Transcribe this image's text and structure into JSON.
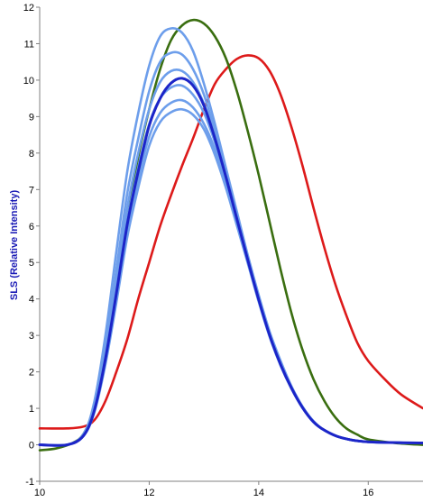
{
  "chart_data": {
    "type": "line",
    "title": "",
    "xlabel": "",
    "ylabel": "SLS (Relative Intensity)",
    "xlim": [
      10,
      17
    ],
    "ylim": [
      -1,
      12
    ],
    "xticks": [
      10,
      12,
      14,
      16
    ],
    "yticks": [
      -1,
      0,
      1,
      2,
      3,
      4,
      5,
      6,
      7,
      8,
      9,
      10,
      11,
      12
    ],
    "grid": false,
    "legend": "none",
    "series": [
      {
        "color": "#dd1a1a",
        "points": [
          [
            10,
            0.45
          ],
          [
            10.5,
            0.45
          ],
          [
            10.8,
            0.5
          ],
          [
            11.0,
            0.68
          ],
          [
            11.2,
            1.2
          ],
          [
            11.4,
            2.0
          ],
          [
            11.6,
            2.9
          ],
          [
            11.8,
            4.0
          ],
          [
            12.0,
            5.0
          ],
          [
            12.2,
            6.0
          ],
          [
            12.4,
            6.85
          ],
          [
            12.6,
            7.65
          ],
          [
            12.8,
            8.4
          ],
          [
            13.0,
            9.2
          ],
          [
            13.2,
            9.9
          ],
          [
            13.4,
            10.3
          ],
          [
            13.6,
            10.58
          ],
          [
            13.8,
            10.68
          ],
          [
            14.0,
            10.6
          ],
          [
            14.2,
            10.25
          ],
          [
            14.4,
            9.6
          ],
          [
            14.6,
            8.7
          ],
          [
            14.8,
            7.65
          ],
          [
            15.0,
            6.5
          ],
          [
            15.2,
            5.4
          ],
          [
            15.4,
            4.4
          ],
          [
            15.6,
            3.55
          ],
          [
            15.8,
            2.8
          ],
          [
            16.0,
            2.3
          ],
          [
            16.3,
            1.8
          ],
          [
            16.6,
            1.38
          ],
          [
            17.0,
            1.0
          ]
        ]
      },
      {
        "color": "#3a6e10",
        "points": [
          [
            10,
            -0.15
          ],
          [
            10.3,
            -0.1
          ],
          [
            10.6,
            0.05
          ],
          [
            10.8,
            0.3
          ],
          [
            11.0,
            1.0
          ],
          [
            11.2,
            2.4
          ],
          [
            11.4,
            4.2
          ],
          [
            11.6,
            6.2
          ],
          [
            11.8,
            7.9
          ],
          [
            12.0,
            9.2
          ],
          [
            12.2,
            10.3
          ],
          [
            12.4,
            11.1
          ],
          [
            12.6,
            11.5
          ],
          [
            12.8,
            11.65
          ],
          [
            13.0,
            11.55
          ],
          [
            13.2,
            11.2
          ],
          [
            13.4,
            10.6
          ],
          [
            13.6,
            9.7
          ],
          [
            13.8,
            8.6
          ],
          [
            14.0,
            7.4
          ],
          [
            14.2,
            6.1
          ],
          [
            14.4,
            4.8
          ],
          [
            14.6,
            3.6
          ],
          [
            14.8,
            2.6
          ],
          [
            15.0,
            1.8
          ],
          [
            15.2,
            1.2
          ],
          [
            15.4,
            0.75
          ],
          [
            15.6,
            0.45
          ],
          [
            15.8,
            0.28
          ],
          [
            16.0,
            0.15
          ],
          [
            16.5,
            0.05
          ],
          [
            17.0,
            0.0
          ]
        ]
      },
      {
        "color": "#6d9eeb",
        "points": [
          [
            10,
            0.0
          ],
          [
            10.5,
            0.0
          ],
          [
            10.8,
            0.3
          ],
          [
            11.0,
            1.2
          ],
          [
            11.2,
            3.0
          ],
          [
            11.4,
            5.3
          ],
          [
            11.6,
            7.5
          ],
          [
            11.8,
            9.1
          ],
          [
            12.0,
            10.4
          ],
          [
            12.2,
            11.2
          ],
          [
            12.4,
            11.42
          ],
          [
            12.6,
            11.3
          ],
          [
            12.8,
            10.8
          ],
          [
            13.0,
            9.9
          ],
          [
            13.2,
            8.8
          ],
          [
            13.4,
            7.6
          ],
          [
            13.6,
            6.4
          ],
          [
            13.8,
            5.2
          ],
          [
            14.0,
            4.1
          ],
          [
            14.2,
            3.1
          ],
          [
            14.4,
            2.3
          ],
          [
            14.6,
            1.6
          ],
          [
            14.8,
            1.05
          ],
          [
            15.0,
            0.65
          ],
          [
            15.2,
            0.4
          ],
          [
            15.5,
            0.2
          ],
          [
            16.0,
            0.08
          ],
          [
            17.0,
            0.05
          ]
        ]
      },
      {
        "color": "#6d9eeb",
        "points": [
          [
            10,
            0.0
          ],
          [
            10.5,
            0.0
          ],
          [
            10.8,
            0.28
          ],
          [
            11.0,
            1.1
          ],
          [
            11.2,
            2.7
          ],
          [
            11.4,
            4.8
          ],
          [
            11.6,
            6.9
          ],
          [
            11.8,
            8.4
          ],
          [
            12.0,
            9.7
          ],
          [
            12.2,
            10.5
          ],
          [
            12.4,
            10.75
          ],
          [
            12.6,
            10.7
          ],
          [
            12.8,
            10.3
          ],
          [
            13.0,
            9.6
          ],
          [
            13.2,
            8.6
          ],
          [
            13.4,
            7.5
          ],
          [
            13.6,
            6.3
          ],
          [
            13.8,
            5.15
          ],
          [
            14.0,
            4.05
          ],
          [
            14.2,
            3.05
          ],
          [
            14.4,
            2.25
          ],
          [
            14.6,
            1.58
          ],
          [
            14.8,
            1.04
          ],
          [
            15.0,
            0.64
          ],
          [
            15.2,
            0.4
          ],
          [
            15.5,
            0.2
          ],
          [
            16.0,
            0.08
          ],
          [
            17.0,
            0.05
          ]
        ]
      },
      {
        "color": "#6d9eeb",
        "points": [
          [
            10,
            0.0
          ],
          [
            10.5,
            0.0
          ],
          [
            10.8,
            0.27
          ],
          [
            11.0,
            1.05
          ],
          [
            11.2,
            2.55
          ],
          [
            11.4,
            4.5
          ],
          [
            11.6,
            6.5
          ],
          [
            11.8,
            8.0
          ],
          [
            12.0,
            9.2
          ],
          [
            12.2,
            9.95
          ],
          [
            12.4,
            10.25
          ],
          [
            12.6,
            10.25
          ],
          [
            12.8,
            9.95
          ],
          [
            13.0,
            9.35
          ],
          [
            13.2,
            8.45
          ],
          [
            13.4,
            7.4
          ],
          [
            13.6,
            6.25
          ],
          [
            13.8,
            5.1
          ],
          [
            14.0,
            4.0
          ],
          [
            14.2,
            3.02
          ],
          [
            14.4,
            2.22
          ],
          [
            14.6,
            1.56
          ],
          [
            14.8,
            1.03
          ],
          [
            15.0,
            0.63
          ],
          [
            15.2,
            0.4
          ],
          [
            15.5,
            0.2
          ],
          [
            16.0,
            0.08
          ],
          [
            17.0,
            0.05
          ]
        ]
      },
      {
        "color": "#6d9eeb",
        "points": [
          [
            10,
            0.0
          ],
          [
            10.5,
            0.0
          ],
          [
            10.8,
            0.26
          ],
          [
            11.0,
            1.0
          ],
          [
            11.2,
            2.4
          ],
          [
            11.4,
            4.25
          ],
          [
            11.6,
            6.15
          ],
          [
            11.8,
            7.6
          ],
          [
            12.0,
            8.8
          ],
          [
            12.2,
            9.5
          ],
          [
            12.4,
            9.8
          ],
          [
            12.6,
            9.85
          ],
          [
            12.8,
            9.6
          ],
          [
            13.0,
            9.1
          ],
          [
            13.2,
            8.3
          ],
          [
            13.4,
            7.3
          ],
          [
            13.6,
            6.2
          ],
          [
            13.8,
            5.07
          ],
          [
            14.0,
            3.98
          ],
          [
            14.2,
            3.0
          ],
          [
            14.4,
            2.2
          ],
          [
            14.6,
            1.55
          ],
          [
            14.8,
            1.02
          ],
          [
            15.0,
            0.63
          ],
          [
            15.2,
            0.4
          ],
          [
            15.5,
            0.2
          ],
          [
            16.0,
            0.08
          ],
          [
            17.0,
            0.05
          ]
        ]
      },
      {
        "color": "#6d9eeb",
        "points": [
          [
            10,
            0.0
          ],
          [
            10.5,
            0.0
          ],
          [
            10.8,
            0.25
          ],
          [
            11.0,
            0.95
          ],
          [
            11.2,
            2.3
          ],
          [
            11.4,
            4.05
          ],
          [
            11.6,
            5.9
          ],
          [
            11.8,
            7.3
          ],
          [
            12.0,
            8.45
          ],
          [
            12.2,
            9.1
          ],
          [
            12.4,
            9.38
          ],
          [
            12.6,
            9.45
          ],
          [
            12.8,
            9.25
          ],
          [
            13.0,
            8.8
          ],
          [
            13.2,
            8.1
          ],
          [
            13.4,
            7.15
          ],
          [
            13.6,
            6.1
          ],
          [
            13.8,
            5.02
          ],
          [
            14.0,
            3.95
          ],
          [
            14.2,
            2.98
          ],
          [
            14.4,
            2.18
          ],
          [
            14.6,
            1.54
          ],
          [
            14.8,
            1.02
          ],
          [
            15.0,
            0.63
          ],
          [
            15.2,
            0.4
          ],
          [
            15.5,
            0.2
          ],
          [
            16.0,
            0.08
          ],
          [
            17.0,
            0.05
          ]
        ]
      },
      {
        "color": "#6d9eeb",
        "points": [
          [
            10,
            0.0
          ],
          [
            10.5,
            0.0
          ],
          [
            10.8,
            0.24
          ],
          [
            11.0,
            0.9
          ],
          [
            11.2,
            2.2
          ],
          [
            11.4,
            3.9
          ],
          [
            11.6,
            5.7
          ],
          [
            11.8,
            7.05
          ],
          [
            12.0,
            8.2
          ],
          [
            12.2,
            8.85
          ],
          [
            12.4,
            9.12
          ],
          [
            12.6,
            9.2
          ],
          [
            12.8,
            9.05
          ],
          [
            13.0,
            8.65
          ],
          [
            13.2,
            7.95
          ],
          [
            13.4,
            7.05
          ],
          [
            13.6,
            6.02
          ],
          [
            13.8,
            4.98
          ],
          [
            14.0,
            3.92
          ],
          [
            14.2,
            2.96
          ],
          [
            14.4,
            2.17
          ],
          [
            14.6,
            1.53
          ],
          [
            14.8,
            1.01
          ],
          [
            15.0,
            0.62
          ],
          [
            15.2,
            0.4
          ],
          [
            15.5,
            0.2
          ],
          [
            16.0,
            0.08
          ],
          [
            17.0,
            0.05
          ]
        ]
      },
      {
        "color": "#1c25c8",
        "points": [
          [
            10,
            0.0
          ],
          [
            10.5,
            0.0
          ],
          [
            10.8,
            0.25
          ],
          [
            11.0,
            0.95
          ],
          [
            11.2,
            2.35
          ],
          [
            11.4,
            4.15
          ],
          [
            11.6,
            6.05
          ],
          [
            11.8,
            7.5
          ],
          [
            12.0,
            8.75
          ],
          [
            12.2,
            9.5
          ],
          [
            12.4,
            9.92
          ],
          [
            12.6,
            10.05
          ],
          [
            12.8,
            9.85
          ],
          [
            13.0,
            9.3
          ],
          [
            13.2,
            8.4
          ],
          [
            13.4,
            7.35
          ],
          [
            13.6,
            6.2
          ],
          [
            13.8,
            5.07
          ],
          [
            14.0,
            3.98
          ],
          [
            14.2,
            3.0
          ],
          [
            14.4,
            2.2
          ],
          [
            14.6,
            1.55
          ],
          [
            14.8,
            1.02
          ],
          [
            15.0,
            0.63
          ],
          [
            15.2,
            0.4
          ],
          [
            15.5,
            0.2
          ],
          [
            16.0,
            0.08
          ],
          [
            17.0,
            0.05
          ]
        ]
      }
    ]
  }
}
